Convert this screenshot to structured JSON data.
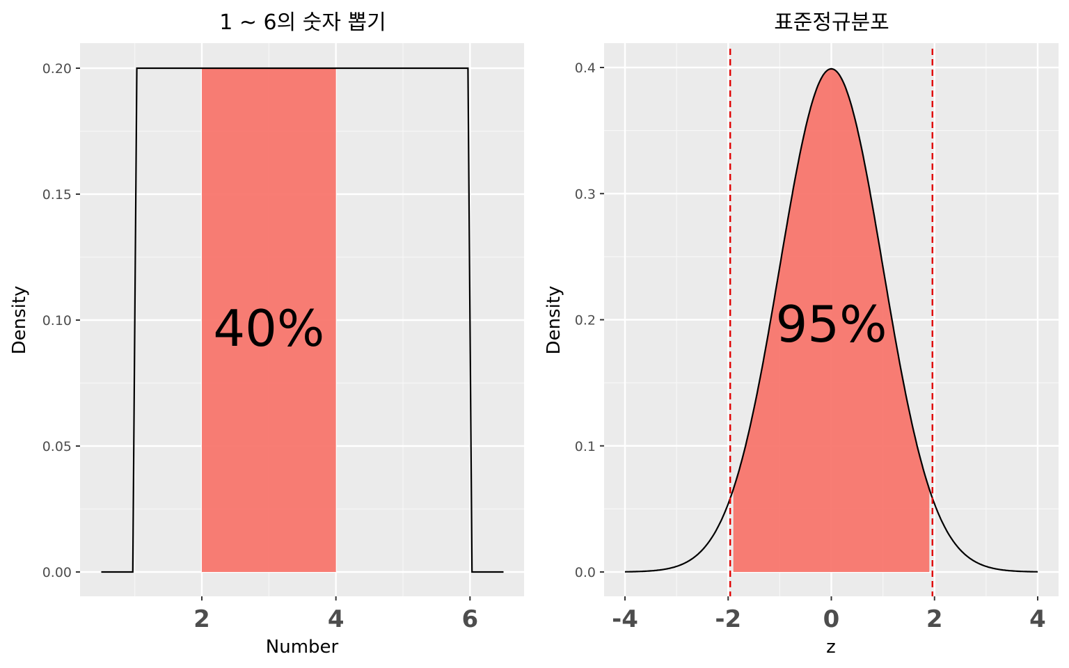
{
  "chart_data": [
    {
      "type": "line",
      "title": "1 ~ 6의 숫자 뽑기",
      "xlabel": "Number",
      "ylabel": "Density",
      "xlim": [
        0.5,
        6.5
      ],
      "ylim": [
        0.0,
        0.2
      ],
      "x_ticks": [
        2,
        4,
        6
      ],
      "y_ticks": [
        "0.00",
        "0.05",
        "0.10",
        "0.15",
        "0.20"
      ],
      "series": [
        {
          "x": [
            0.5,
            0.97,
            1.03,
            5.97,
            6.03,
            6.5
          ],
          "y": [
            0.0,
            0.0,
            0.2,
            0.2,
            0.0,
            0.0
          ]
        }
      ],
      "shaded_region": {
        "x": [
          2,
          4
        ],
        "y_top": 0.2,
        "color": "#f8766d"
      },
      "annotation": {
        "text": "40%",
        "x": 3.0,
        "y": 0.097
      },
      "grid": true
    },
    {
      "type": "line",
      "title": "표준정규분포",
      "xlabel": "z",
      "ylabel": "Density",
      "xlim": [
        -4,
        4
      ],
      "ylim": [
        0.0,
        0.4
      ],
      "x_ticks": [
        -4,
        -2,
        0,
        2,
        4
      ],
      "y_ticks": [
        "0.0",
        "0.1",
        "0.2",
        "0.3",
        "0.4"
      ],
      "series": [
        {
          "function": "standard normal pdf",
          "x_range": [
            -4,
            4
          ]
        }
      ],
      "shaded_region": {
        "x": [
          -1.9,
          1.9
        ],
        "color": "#f8766d"
      },
      "vlines": {
        "x": [
          -1.96,
          1.96
        ],
        "color": "#e00000",
        "style": "dashed"
      },
      "annotation": {
        "text": "95%",
        "x": 0.0,
        "y": 0.197
      },
      "grid": true
    }
  ]
}
